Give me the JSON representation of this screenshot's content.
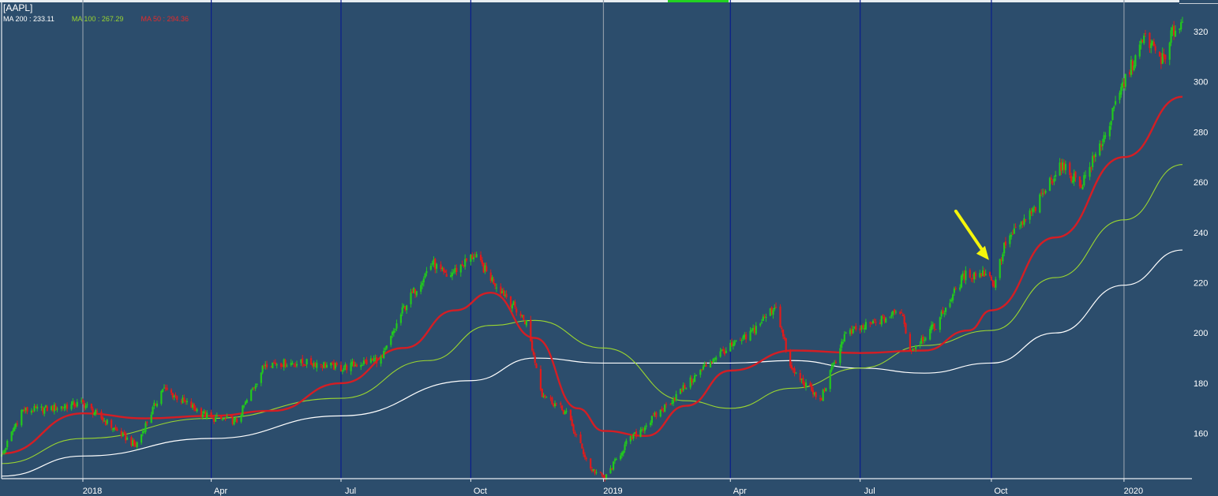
{
  "legend": {
    "ticker": "[AAPL]",
    "ma200": "MA 200 : 233.11",
    "ma100": "MA 100 : 267.29",
    "ma50": "MA 50 : 294.36"
  },
  "colors": {
    "background": "#2c4d6c",
    "up_candle": "#22c81e",
    "down_candle": "#e01b1b",
    "ma200": "#ffffff",
    "ma100": "#9bd630",
    "ma50": "#d41e24",
    "quarter_line": "#0a1e8c",
    "year_line": "#8c9aa8",
    "axis_text": "#ffffff",
    "arrow": "#f5f50a"
  },
  "chart_data": {
    "type": "candlestick",
    "title": "",
    "ticker": "AAPL",
    "x_range": [
      "2017-11-06",
      "2020-02-12"
    ],
    "ylim": [
      142,
      330
    ],
    "y_ticks": [
      160,
      180,
      200,
      220,
      240,
      260,
      280,
      300,
      320
    ],
    "x_ticks": [
      {
        "label": "2018",
        "date": "2018-01-02",
        "line": "year"
      },
      {
        "label": "Apr",
        "date": "2018-04-02",
        "line": "quarter"
      },
      {
        "label": "Jul",
        "date": "2018-07-02",
        "line": "quarter"
      },
      {
        "label": "Oct",
        "date": "2018-10-01",
        "line": "quarter"
      },
      {
        "label": "2019",
        "date": "2019-01-02",
        "line": "year"
      },
      {
        "label": "Apr",
        "date": "2019-04-01",
        "line": "quarter"
      },
      {
        "label": "Jul",
        "date": "2019-07-01",
        "line": "quarter"
      },
      {
        "label": "Oct",
        "date": "2019-10-01",
        "line": "quarter"
      },
      {
        "label": "2020",
        "date": "2020-01-02",
        "line": "year"
      }
    ],
    "price_path": [
      [
        "2017-11-06",
        151
      ],
      [
        "2017-11-20",
        169
      ],
      [
        "2017-12-11",
        170
      ],
      [
        "2018-01-02",
        172
      ],
      [
        "2018-02-08",
        155
      ],
      [
        "2018-02-27",
        178
      ],
      [
        "2018-03-21",
        170
      ],
      [
        "2018-04-02",
        166
      ],
      [
        "2018-04-20",
        165
      ],
      [
        "2018-05-10",
        188
      ],
      [
        "2018-06-15",
        188
      ],
      [
        "2018-07-02",
        186
      ],
      [
        "2018-07-31",
        190
      ],
      [
        "2018-08-15",
        210
      ],
      [
        "2018-09-04",
        228
      ],
      [
        "2018-09-14",
        222
      ],
      [
        "2018-10-03",
        231
      ],
      [
        "2018-10-19",
        219
      ],
      [
        "2018-10-24",
        216
      ],
      [
        "2018-11-09",
        204
      ],
      [
        "2018-11-20",
        176
      ],
      [
        "2018-12-07",
        168
      ],
      [
        "2018-12-24",
        146
      ],
      [
        "2019-01-03",
        142
      ],
      [
        "2019-01-18",
        156
      ],
      [
        "2019-02-15",
        171
      ],
      [
        "2019-03-22",
        191
      ],
      [
        "2019-04-12",
        198
      ],
      [
        "2019-05-03",
        211
      ],
      [
        "2019-05-13",
        186
      ],
      [
        "2019-06-03",
        173
      ],
      [
        "2019-06-20",
        199
      ],
      [
        "2019-07-15",
        205
      ],
      [
        "2019-07-30",
        209
      ],
      [
        "2019-08-05",
        193
      ],
      [
        "2019-08-23",
        203
      ],
      [
        "2019-09-12",
        223
      ],
      [
        "2019-09-30",
        224
      ],
      [
        "2019-10-02",
        218
      ],
      [
        "2019-10-11",
        236
      ],
      [
        "2019-10-31",
        249
      ],
      [
        "2019-11-18",
        267
      ],
      [
        "2019-12-03",
        259
      ],
      [
        "2019-12-20",
        279
      ],
      [
        "2020-01-02",
        300
      ],
      [
        "2020-01-17",
        318
      ],
      [
        "2020-01-27",
        310
      ],
      [
        "2020-01-31",
        308
      ],
      [
        "2020-02-05",
        320
      ],
      [
        "2020-02-12",
        324
      ]
    ],
    "series": [
      {
        "name": "MA 200",
        "values": [
          [
            "2017-11-06",
            143
          ],
          [
            "2018-01-02",
            151
          ],
          [
            "2018-04-02",
            158
          ],
          [
            "2018-07-02",
            167
          ],
          [
            "2018-10-01",
            181
          ],
          [
            "2018-11-15",
            190
          ],
          [
            "2019-01-02",
            188
          ],
          [
            "2019-04-01",
            188
          ],
          [
            "2019-05-15",
            189
          ],
          [
            "2019-07-01",
            186
          ],
          [
            "2019-08-15",
            184
          ],
          [
            "2019-10-01",
            188
          ],
          [
            "2019-11-15",
            200
          ],
          [
            "2020-01-02",
            219
          ],
          [
            "2020-02-12",
            233
          ]
        ]
      },
      {
        "name": "MA 100",
        "values": [
          [
            "2017-11-06",
            148
          ],
          [
            "2018-01-02",
            158
          ],
          [
            "2018-04-02",
            166
          ],
          [
            "2018-07-02",
            174
          ],
          [
            "2018-09-01",
            189
          ],
          [
            "2018-10-15",
            203
          ],
          [
            "2018-11-15",
            205
          ],
          [
            "2019-01-02",
            194
          ],
          [
            "2019-03-01",
            173
          ],
          [
            "2019-04-01",
            170
          ],
          [
            "2019-05-15",
            178
          ],
          [
            "2019-07-01",
            186
          ],
          [
            "2019-08-15",
            195
          ],
          [
            "2019-10-01",
            201
          ],
          [
            "2019-11-15",
            222
          ],
          [
            "2020-01-02",
            245
          ],
          [
            "2020-02-12",
            267
          ]
        ]
      },
      {
        "name": "MA 50",
        "values": [
          [
            "2017-11-06",
            152
          ],
          [
            "2018-01-02",
            168
          ],
          [
            "2018-02-15",
            166
          ],
          [
            "2018-04-02",
            167
          ],
          [
            "2018-05-15",
            169
          ],
          [
            "2018-07-02",
            180
          ],
          [
            "2018-08-15",
            194
          ],
          [
            "2018-09-20",
            209
          ],
          [
            "2018-10-15",
            216
          ],
          [
            "2018-11-15",
            198
          ],
          [
            "2018-12-15",
            170
          ],
          [
            "2019-01-02",
            161
          ],
          [
            "2019-02-01",
            159
          ],
          [
            "2019-03-01",
            171
          ],
          [
            "2019-04-01",
            185
          ],
          [
            "2019-05-15",
            193
          ],
          [
            "2019-07-01",
            192
          ],
          [
            "2019-08-15",
            193
          ],
          [
            "2019-09-15",
            201
          ],
          [
            "2019-10-01",
            209
          ],
          [
            "2019-11-15",
            238
          ],
          [
            "2020-01-02",
            270
          ],
          [
            "2020-02-12",
            294
          ]
        ]
      }
    ],
    "annotations": [
      {
        "type": "arrow",
        "date": "2019-10-01",
        "price": 225
      }
    ]
  }
}
